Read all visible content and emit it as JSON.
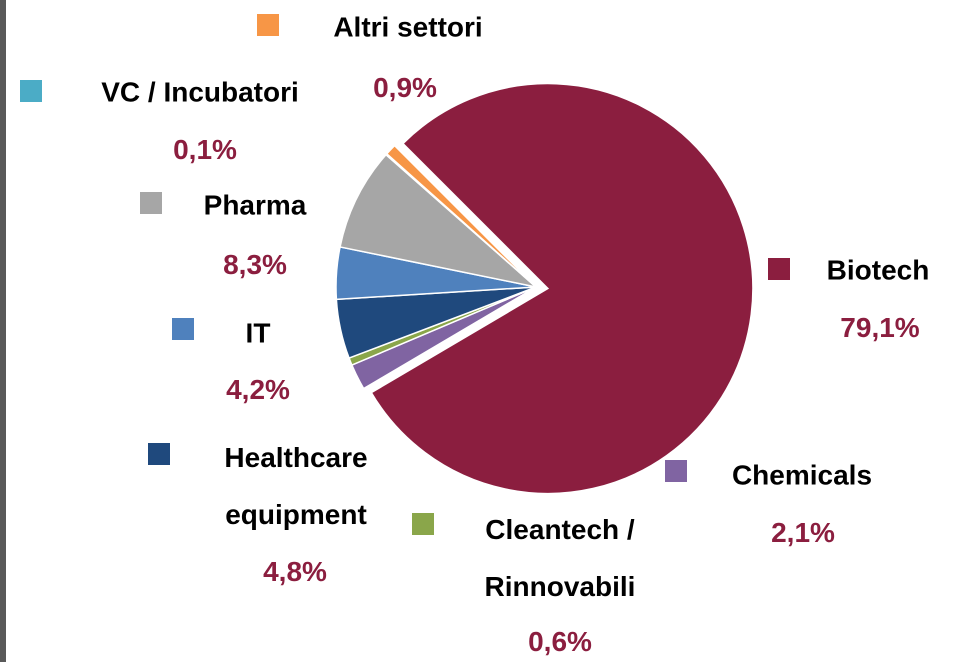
{
  "chart_data": {
    "type": "pie",
    "categories": [
      "Biotech",
      "Chemicals",
      "Cleantech /\nRinnovabili",
      "Healthcare\nequipment",
      "IT",
      "Pharma",
      "VC / Incubatori",
      "Altri settori"
    ],
    "values": [
      79.1,
      2.1,
      0.6,
      4.8,
      4.2,
      8.3,
      0.1,
      0.9
    ],
    "value_labels": [
      "79,1%",
      "2,1%",
      "0,6%",
      "4,8%",
      "4,2%",
      "8,3%",
      "0,1%",
      "0,9%"
    ],
    "colors": [
      "#8b1e3f",
      "#8064a2",
      "#8aa64a",
      "#1f497d",
      "#4f81bd",
      "#a6a6a6",
      "#4bacc6",
      "#f79646"
    ]
  }
}
